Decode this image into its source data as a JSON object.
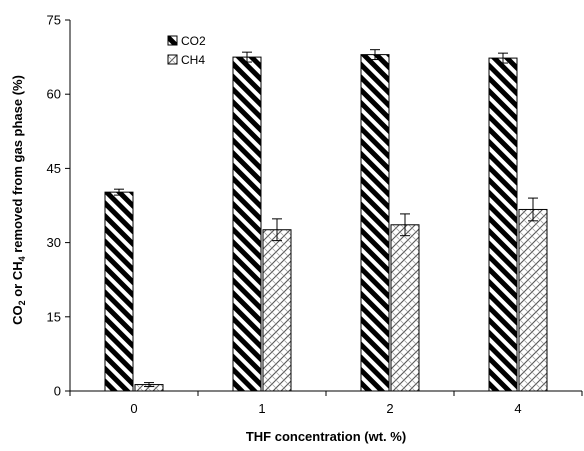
{
  "chart_data": {
    "type": "bar",
    "title": "",
    "categories": [
      "0",
      "1",
      "2",
      "4"
    ],
    "series": [
      {
        "name": "CO2",
        "values": [
          40.2,
          67.5,
          68.0,
          67.3
        ],
        "errors": [
          0.6,
          1.0,
          1.0,
          1.0
        ],
        "pattern": "diagonal-stripes-bold"
      },
      {
        "name": "CH4",
        "values": [
          1.3,
          32.6,
          33.6,
          36.7
        ],
        "errors": [
          0.4,
          2.2,
          2.2,
          2.3
        ],
        "pattern": "crosshatch-light"
      }
    ],
    "xlabel": "THF concentration (wt. %)",
    "ylabel": {
      "p1": "CO",
      "s1": "2",
      "p2": " or CH",
      "s2": "4",
      "p3": " removed from gas phase (%)"
    },
    "ylim": [
      0,
      75
    ],
    "yticks": [
      "0",
      "15",
      "30",
      "45",
      "60",
      "75"
    ],
    "grid": false,
    "legend_position": "top-left"
  }
}
